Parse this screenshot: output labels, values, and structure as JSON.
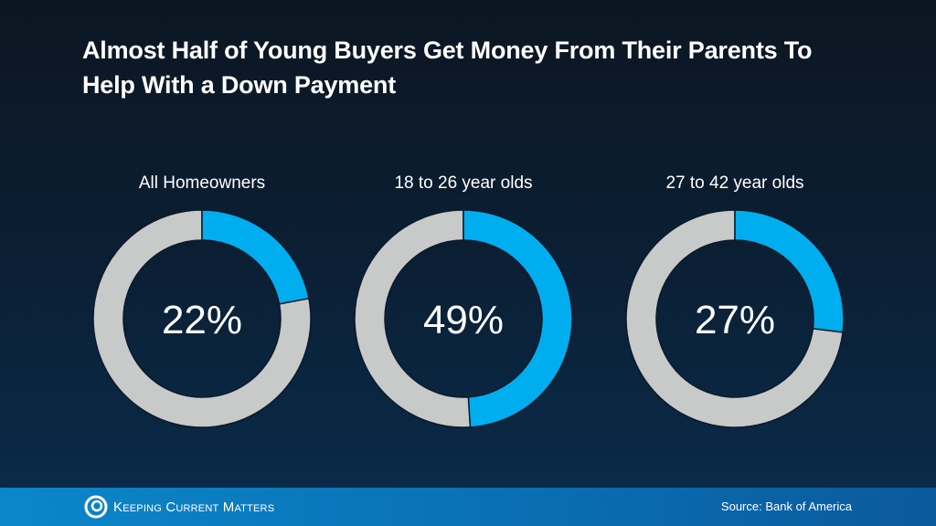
{
  "title": "Almost Half of Young Buyers Get Money From Their Parents To Help With a Down Payment",
  "colors": {
    "highlight": "#00aeef",
    "remainder": "#c8c9c9",
    "background": "#0b1e32"
  },
  "chart_data": [
    {
      "type": "pie",
      "donut": true,
      "title": "All Homeowners",
      "value": 22,
      "label": "22%",
      "max": 100
    },
    {
      "type": "pie",
      "donut": true,
      "title": "18 to 26 year olds",
      "value": 49,
      "label": "49%",
      "max": 100
    },
    {
      "type": "pie",
      "donut": true,
      "title": "27 to 42 year olds",
      "value": 27,
      "label": "27%",
      "max": 100
    }
  ],
  "footer": {
    "brand": "Keeping Current Matters",
    "logo_icon": "swirl-logo-icon",
    "source": "Source: Bank of America"
  }
}
